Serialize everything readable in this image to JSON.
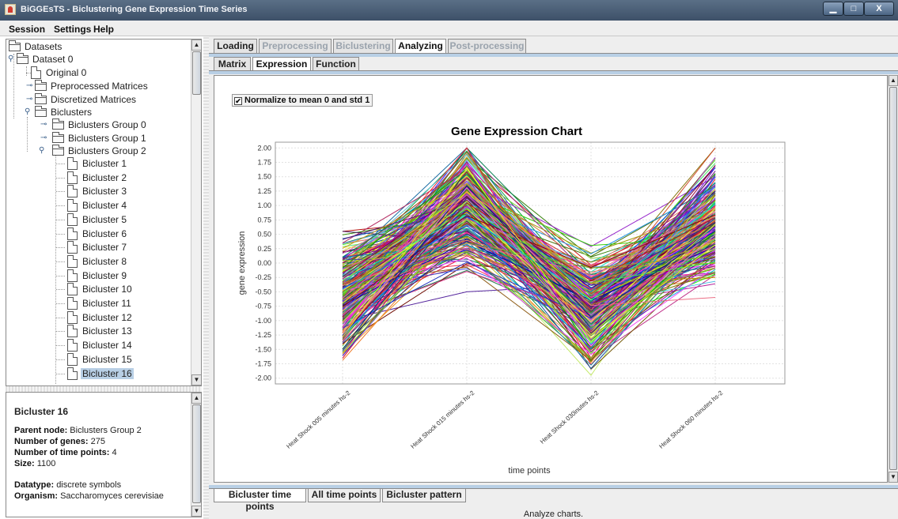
{
  "window": {
    "title": "BiGGEsTS - Biclustering Gene Expression Time Series",
    "buttons": [
      "minimize",
      "maximize",
      "close"
    ]
  },
  "menu": [
    "Session",
    "Settings",
    "Help"
  ],
  "tree": {
    "root": "Datasets",
    "dataset": "Dataset 0",
    "original": "Original 0",
    "preprocessed": "Preprocessed Matrices",
    "discretized": "Discretized Matrices",
    "biclusters": "Biclusters",
    "groups": [
      "Biclusters Group 0",
      "Biclusters Group 1",
      "Biclusters Group 2"
    ],
    "bicluster_items": [
      "Bicluster 1",
      "Bicluster 2",
      "Bicluster 3",
      "Bicluster 4",
      "Bicluster 5",
      "Bicluster 6",
      "Bicluster 7",
      "Bicluster 8",
      "Bicluster 9",
      "Bicluster 10",
      "Bicluster 11",
      "Bicluster 12",
      "Bicluster 13",
      "Bicluster 14",
      "Bicluster 15",
      "Bicluster 16"
    ],
    "selected": "Bicluster 16"
  },
  "info": {
    "title": "Bicluster 16",
    "parent_label": "Parent node:",
    "parent_value": "Biclusters Group 2",
    "genes_label": "Number of genes:",
    "genes_value": "275",
    "timepoints_label": "Number of time points:",
    "timepoints_value": "4",
    "size_label": "Size:",
    "size_value": "1100",
    "datatype_label": "Datatype:",
    "datatype_value": "discrete symbols",
    "organism_label": "Organism:",
    "organism_value": "Saccharomyces cerevisiae"
  },
  "main_tabs": [
    {
      "label": "Loading",
      "state": "enabled"
    },
    {
      "label": "Preprocessing",
      "state": "disabled"
    },
    {
      "label": "Biclustering",
      "state": "disabled"
    },
    {
      "label": "Analyzing",
      "state": "active"
    },
    {
      "label": "Post-processing",
      "state": "disabled"
    }
  ],
  "sub_tabs": [
    {
      "label": "Matrix",
      "state": "enabled"
    },
    {
      "label": "Expression",
      "state": "active"
    },
    {
      "label": "Function",
      "state": "enabled"
    }
  ],
  "normalize": {
    "checked": true,
    "label": "Normalize to mean 0 and std 1"
  },
  "chart_data": {
    "type": "line",
    "title": "Gene Expression Chart",
    "xlabel": "time points",
    "ylabel": "gene expression",
    "categories": [
      "Heat Shock 005 minutes hs-2",
      "Heat Shock 015 minutes hs-2",
      "Heat Shock 030inutes hs-2",
      "Heat Shock 060 minutes hs-2"
    ],
    "ylim": [
      -2.1,
      2.1
    ],
    "yticks": [
      "2.00",
      "1.75",
      "1.50",
      "1.25",
      "1.00",
      "0.75",
      "0.50",
      "0.25",
      "0.00",
      "-0.25",
      "-0.50",
      "-0.75",
      "-1.00",
      "-1.25",
      "-1.50",
      "-1.75",
      "-2.00"
    ],
    "grid": true,
    "series_count": 275,
    "series_envelope": {
      "max": [
        0.55,
        2.0,
        0.45,
        2.0
      ],
      "min": [
        -1.95,
        -0.5,
        -1.95,
        -0.65
      ],
      "typical_center": [
        -0.6,
        1.0,
        -0.85,
        0.7
      ]
    }
  },
  "bottom_tabs": [
    {
      "label": "Bicluster time points",
      "state": "active"
    },
    {
      "label": "All time points",
      "state": "enabled"
    },
    {
      "label": "Bicluster pattern",
      "state": "enabled"
    }
  ],
  "status": "Analyze charts.",
  "colors": {
    "selection": "#b8cfe5",
    "tab_strip": "#b8cfe5"
  }
}
